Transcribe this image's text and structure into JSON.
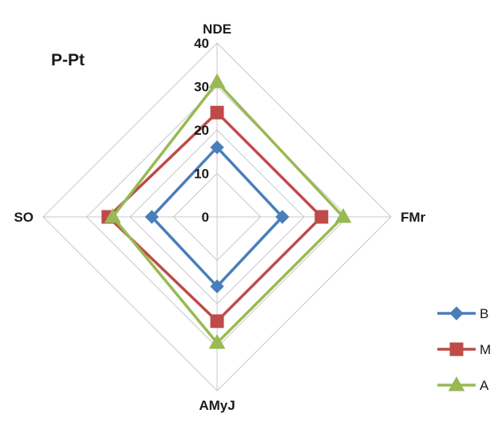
{
  "chart_data": {
    "type": "radar",
    "title": "P-Pt",
    "axes": [
      "NDE",
      "FMr",
      "AMyJ",
      "SO"
    ],
    "rlim": [
      0,
      40
    ],
    "ticks": [
      "0",
      "10",
      "20",
      "30",
      "40"
    ],
    "grid": true,
    "legend_position": "right-bottom",
    "series": [
      {
        "name": "B",
        "values": [
          16,
          15,
          16,
          15
        ],
        "color": "#4a7ebb",
        "marker": "diamond"
      },
      {
        "name": "M",
        "values": [
          24,
          24,
          24,
          25
        ],
        "color": "#be4b48",
        "marker": "square"
      },
      {
        "name": "A",
        "values": [
          31,
          29,
          29,
          24
        ],
        "color": "#98b954",
        "marker": "triangle"
      }
    ]
  }
}
